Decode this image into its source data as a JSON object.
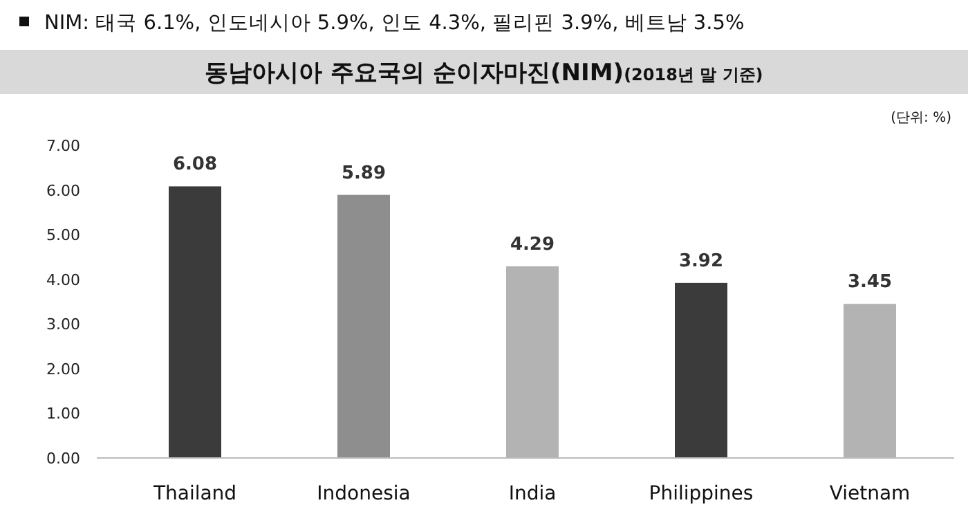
{
  "chart_data": {
    "type": "bar",
    "title": "동남아시아 주요국의 순이자마진(NIM)",
    "subtitle": "(2018년 말 기준)",
    "ylabel": "(단위: %)",
    "annotations": [
      "NIM: 태국 6.1%, 인도네시아 5.9%, 인도 4.3%, 필리핀 3.9%, 베트남 3.5%"
    ],
    "categories": [
      "Thailand",
      "Indonesia",
      "India",
      "Philippines",
      "Vietnam"
    ],
    "values": [
      6.08,
      5.89,
      4.29,
      3.92,
      3.45
    ],
    "colors": [
      "#3b3b3b",
      "#8e8e8e",
      "#b3b3b3",
      "#3b3b3b",
      "#b3b3b3"
    ],
    "ylim": [
      0,
      7
    ],
    "yticks": [
      {
        "value": 0,
        "label": "0.00"
      },
      {
        "value": 1,
        "label": "1.00"
      },
      {
        "value": 2,
        "label": "2.00"
      },
      {
        "value": 3,
        "label": "3.00"
      },
      {
        "value": 4,
        "label": "4.00"
      },
      {
        "value": 5,
        "label": "5.00"
      },
      {
        "value": 6,
        "label": "6.00"
      },
      {
        "value": 7,
        "label": "7.00"
      }
    ],
    "data_labels": true,
    "grid": false
  }
}
